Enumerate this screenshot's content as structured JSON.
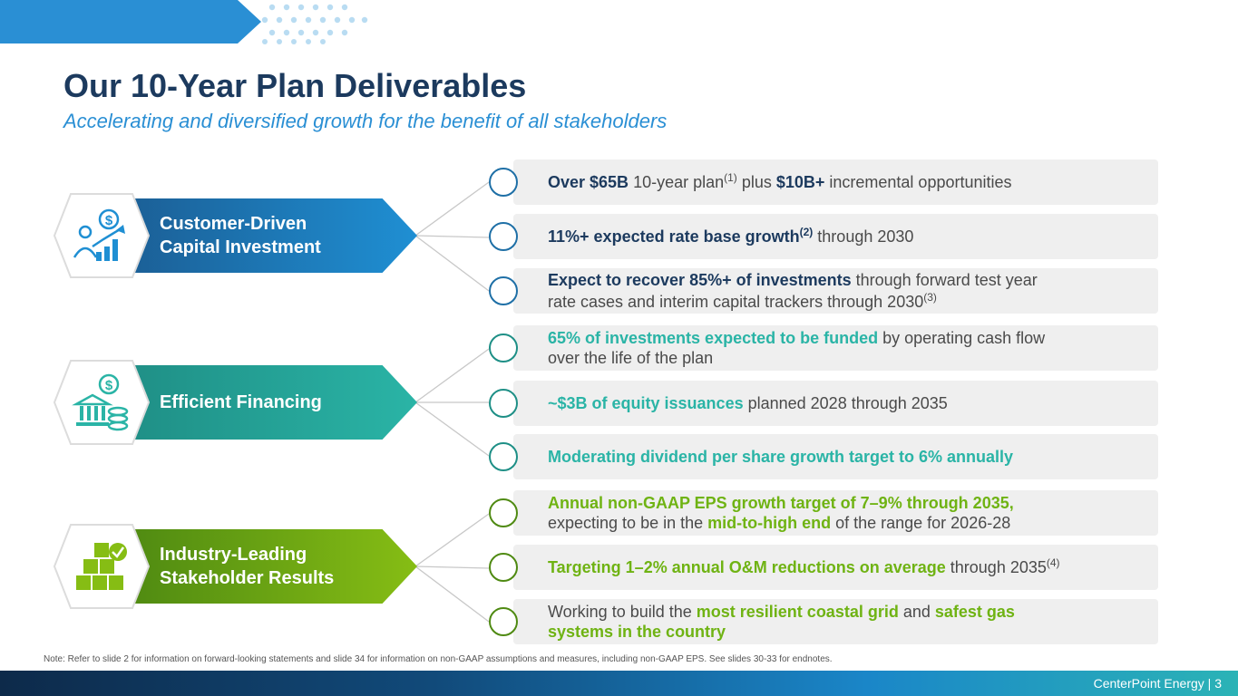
{
  "header": {
    "title": "Our 10-Year Plan Deliverables",
    "subtitle": "Accelerating and diversified growth for the benefit of all stakeholders"
  },
  "pillars": [
    {
      "line1": "Customer-Driven",
      "line2": "Capital Investment",
      "icon": "growth-chart-dollar-icon",
      "color": "#1f8fd3"
    },
    {
      "line1": "Efficient Financing",
      "line2": "",
      "icon": "bank-coins-icon",
      "color": "#2ab4a6"
    },
    {
      "line1": "Industry-Leading",
      "line2": "Stakeholder Results",
      "icon": "boxes-check-icon",
      "color": "#86bd14"
    }
  ],
  "rows": [
    {
      "parts": [
        {
          "t": "Over $65B",
          "s": "b-blue"
        },
        {
          "t": " 10-year plan"
        },
        {
          "t": "(1)",
          "sup": true
        },
        {
          "t": " plus "
        },
        {
          "t": "$10B+",
          "s": "b-blue"
        },
        {
          "t": " incremental opportunities"
        }
      ]
    },
    {
      "parts": [
        {
          "t": "11%+ expected rate base growth",
          "s": "b-blue"
        },
        {
          "t": "(2)",
          "sup": true,
          "s": "b-blue"
        },
        {
          "t": " through 2030"
        }
      ]
    },
    {
      "parts": [
        {
          "t": "Expect to recover 85%+ of investments",
          "s": "b-blue"
        },
        {
          "t": " through forward test year\nrate cases and interim capital trackers through 2030"
        },
        {
          "t": "(3)",
          "sup": true
        }
      ]
    },
    {
      "parts": [
        {
          "t": "65% of investments expected to be funded",
          "s": "b-teal"
        },
        {
          "t": " by operating cash flow\nover the life of the plan"
        }
      ]
    },
    {
      "parts": [
        {
          "t": "~$3B of equity issuances",
          "s": "b-teal"
        },
        {
          "t": " planned 2028 through 2035"
        }
      ]
    },
    {
      "parts": [
        {
          "t": "Moderating dividend per share growth target to 6% annually",
          "s": "b-teal"
        }
      ]
    },
    {
      "parts": [
        {
          "t": "Annual non-GAAP EPS growth target of 7–9% through 2035,",
          "s": "b-green"
        },
        {
          "t": "\nexpecting to be in the "
        },
        {
          "t": "mid-to-high end",
          "s": "b-green"
        },
        {
          "t": " of the range for 2026-28"
        }
      ]
    },
    {
      "parts": [
        {
          "t": "Targeting 1–2% annual O&M reductions on average",
          "s": "b-green"
        },
        {
          "t": " through 2035"
        },
        {
          "t": "(4)",
          "sup": true
        }
      ]
    },
    {
      "parts": [
        {
          "t": "Working to build the "
        },
        {
          "t": "most resilient coastal grid",
          "s": "b-green"
        },
        {
          "t": " and "
        },
        {
          "t": "safest gas\nsystems in the country",
          "s": "b-green"
        }
      ]
    }
  ],
  "note": "Note: Refer to slide 2 for information on forward-looking statements and slide 34 for information on non-GAAP assumptions and measures, including non-GAAP EPS. See slides 30-33 for endnotes.",
  "footer": {
    "company": "CenterPoint Energy | 3"
  },
  "colors": {
    "navy": "#1c3a5e",
    "blue": "#2a8fd4",
    "teal": "#2ab4a6",
    "green": "#86bd14"
  }
}
